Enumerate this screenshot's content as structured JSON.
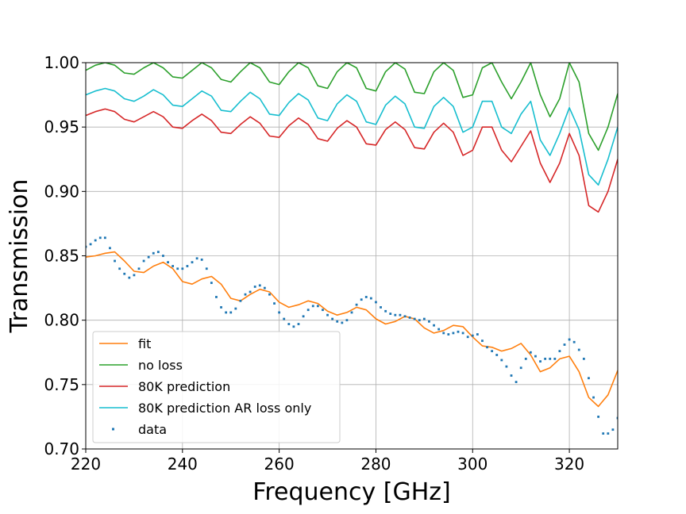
{
  "chart_data": {
    "type": "line",
    "xlabel": "Frequency [GHz]",
    "ylabel": "Transmission",
    "xlim": [
      220,
      330
    ],
    "ylim": [
      0.7,
      1.0
    ],
    "xticks": [
      "220",
      "240",
      "260",
      "280",
      "300",
      "320"
    ],
    "yticks": [
      "0.70",
      "0.75",
      "0.80",
      "0.85",
      "0.90",
      "0.95",
      "1.00"
    ],
    "grid": true,
    "legend_position": "lower-left",
    "series": [
      {
        "name": "fit",
        "color": "#ff7f0e",
        "kind": "line",
        "x": [
          220,
          222,
          224,
          226,
          228,
          230,
          232,
          234,
          236,
          238,
          240,
          242,
          244,
          246,
          248,
          250,
          252,
          254,
          256,
          258,
          260,
          262,
          264,
          266,
          268,
          270,
          272,
          274,
          276,
          278,
          280,
          282,
          284,
          286,
          288,
          290,
          292,
          294,
          296,
          298,
          300,
          302,
          304,
          306,
          308,
          310,
          312,
          314,
          316,
          318,
          320,
          322,
          324,
          326,
          328,
          330
        ],
        "y": [
          0.849,
          0.85,
          0.852,
          0.853,
          0.846,
          0.838,
          0.837,
          0.842,
          0.845,
          0.84,
          0.83,
          0.828,
          0.832,
          0.834,
          0.828,
          0.817,
          0.815,
          0.82,
          0.824,
          0.822,
          0.814,
          0.81,
          0.812,
          0.815,
          0.813,
          0.807,
          0.804,
          0.806,
          0.81,
          0.808,
          0.801,
          0.797,
          0.799,
          0.803,
          0.801,
          0.794,
          0.79,
          0.792,
          0.796,
          0.795,
          0.787,
          0.78,
          0.779,
          0.776,
          0.778,
          0.782,
          0.773,
          0.76,
          0.763,
          0.77,
          0.772,
          0.76,
          0.74,
          0.733,
          0.742,
          0.761
        ]
      },
      {
        "name": "no loss",
        "color": "#2ca02c",
        "kind": "line",
        "x": [
          220,
          222,
          224,
          226,
          228,
          230,
          232,
          234,
          236,
          238,
          240,
          242,
          244,
          246,
          248,
          250,
          252,
          254,
          256,
          258,
          260,
          262,
          264,
          266,
          268,
          270,
          272,
          274,
          276,
          278,
          280,
          282,
          284,
          286,
          288,
          290,
          292,
          294,
          296,
          298,
          300,
          302,
          304,
          306,
          308,
          310,
          312,
          314,
          316,
          318,
          320,
          322,
          324,
          326,
          328,
          330
        ],
        "y": [
          0.994,
          0.998,
          1.0,
          0.998,
          0.992,
          0.991,
          0.996,
          1.0,
          0.996,
          0.989,
          0.988,
          0.994,
          1.0,
          0.996,
          0.987,
          0.985,
          0.993,
          1.0,
          0.996,
          0.985,
          0.983,
          0.993,
          1.0,
          0.996,
          0.982,
          0.98,
          0.993,
          1.0,
          0.996,
          0.98,
          0.978,
          0.993,
          1.0,
          0.995,
          0.977,
          0.976,
          0.993,
          1.0,
          0.994,
          0.973,
          0.975,
          0.996,
          1.0,
          0.985,
          0.972,
          0.985,
          1.0,
          0.975,
          0.958,
          0.972,
          1.0,
          0.985,
          0.945,
          0.932,
          0.95,
          0.976
        ]
      },
      {
        "name": "80K prediction",
        "color": "#d62728",
        "kind": "line",
        "x": [
          220,
          222,
          224,
          226,
          228,
          230,
          232,
          234,
          236,
          238,
          240,
          242,
          244,
          246,
          248,
          250,
          252,
          254,
          256,
          258,
          260,
          262,
          264,
          266,
          268,
          270,
          272,
          274,
          276,
          278,
          280,
          282,
          284,
          286,
          288,
          290,
          292,
          294,
          296,
          298,
          300,
          302,
          304,
          306,
          308,
          310,
          312,
          314,
          316,
          318,
          320,
          322,
          324,
          326,
          328,
          330
        ],
        "y": [
          0.959,
          0.962,
          0.964,
          0.962,
          0.956,
          0.954,
          0.958,
          0.962,
          0.958,
          0.95,
          0.949,
          0.955,
          0.96,
          0.955,
          0.946,
          0.945,
          0.952,
          0.958,
          0.953,
          0.943,
          0.942,
          0.951,
          0.957,
          0.952,
          0.941,
          0.939,
          0.949,
          0.955,
          0.95,
          0.937,
          0.936,
          0.948,
          0.954,
          0.948,
          0.934,
          0.933,
          0.946,
          0.953,
          0.946,
          0.928,
          0.932,
          0.95,
          0.95,
          0.932,
          0.923,
          0.935,
          0.947,
          0.922,
          0.907,
          0.922,
          0.945,
          0.928,
          0.889,
          0.884,
          0.9,
          0.925
        ]
      },
      {
        "name": "80K prediction AR loss only",
        "color": "#17becf",
        "kind": "line",
        "x": [
          220,
          222,
          224,
          226,
          228,
          230,
          232,
          234,
          236,
          238,
          240,
          242,
          244,
          246,
          248,
          250,
          252,
          254,
          256,
          258,
          260,
          262,
          264,
          266,
          268,
          270,
          272,
          274,
          276,
          278,
          280,
          282,
          284,
          286,
          288,
          290,
          292,
          294,
          296,
          298,
          300,
          302,
          304,
          306,
          308,
          310,
          312,
          314,
          316,
          318,
          320,
          322,
          324,
          326,
          328,
          330
        ],
        "y": [
          0.975,
          0.978,
          0.98,
          0.978,
          0.972,
          0.97,
          0.974,
          0.979,
          0.975,
          0.967,
          0.966,
          0.972,
          0.978,
          0.974,
          0.963,
          0.962,
          0.97,
          0.977,
          0.972,
          0.96,
          0.959,
          0.969,
          0.976,
          0.971,
          0.957,
          0.955,
          0.968,
          0.975,
          0.97,
          0.954,
          0.952,
          0.967,
          0.974,
          0.968,
          0.95,
          0.949,
          0.966,
          0.973,
          0.966,
          0.946,
          0.95,
          0.97,
          0.97,
          0.95,
          0.945,
          0.96,
          0.97,
          0.94,
          0.928,
          0.945,
          0.965,
          0.948,
          0.913,
          0.905,
          0.925,
          0.95
        ]
      },
      {
        "name": "data",
        "color": "#1f77b4",
        "kind": "scatter",
        "x": [
          220,
          221,
          222,
          223,
          224,
          225,
          226,
          227,
          228,
          229,
          230,
          231,
          232,
          233,
          234,
          235,
          236,
          237,
          238,
          239,
          240,
          241,
          242,
          243,
          244,
          245,
          246,
          247,
          248,
          249,
          250,
          251,
          252,
          253,
          254,
          255,
          256,
          257,
          258,
          259,
          260,
          261,
          262,
          263,
          264,
          265,
          266,
          267,
          268,
          269,
          270,
          271,
          272,
          273,
          274,
          275,
          276,
          277,
          278,
          279,
          280,
          281,
          282,
          283,
          284,
          285,
          286,
          287,
          288,
          289,
          290,
          291,
          292,
          293,
          294,
          295,
          296,
          297,
          298,
          299,
          300,
          301,
          302,
          303,
          304,
          305,
          306,
          307,
          308,
          309,
          310,
          311,
          312,
          313,
          314,
          315,
          316,
          317,
          318,
          319,
          320,
          321,
          322,
          323,
          324,
          325,
          326,
          327,
          328,
          329,
          330
        ],
        "y": [
          0.857,
          0.859,
          0.862,
          0.864,
          0.864,
          0.856,
          0.846,
          0.84,
          0.836,
          0.833,
          0.835,
          0.84,
          0.846,
          0.849,
          0.852,
          0.853,
          0.85,
          0.845,
          0.842,
          0.84,
          0.84,
          0.842,
          0.845,
          0.848,
          0.847,
          0.84,
          0.829,
          0.818,
          0.81,
          0.806,
          0.806,
          0.809,
          0.815,
          0.82,
          0.822,
          0.826,
          0.827,
          0.825,
          0.82,
          0.813,
          0.806,
          0.801,
          0.797,
          0.795,
          0.797,
          0.803,
          0.808,
          0.811,
          0.811,
          0.808,
          0.804,
          0.801,
          0.799,
          0.798,
          0.8,
          0.806,
          0.812,
          0.816,
          0.818,
          0.817,
          0.814,
          0.81,
          0.807,
          0.805,
          0.804,
          0.804,
          0.803,
          0.802,
          0.801,
          0.8,
          0.801,
          0.799,
          0.796,
          0.793,
          0.79,
          0.789,
          0.79,
          0.791,
          0.79,
          0.787,
          0.788,
          0.789,
          0.784,
          0.779,
          0.776,
          0.773,
          0.769,
          0.764,
          0.757,
          0.752,
          0.763,
          0.77,
          0.775,
          0.772,
          0.768,
          0.77,
          0.77,
          0.77,
          0.776,
          0.781,
          0.785,
          0.783,
          0.777,
          0.77,
          0.755,
          0.74,
          0.725,
          0.712,
          0.712,
          0.715,
          0.724
        ]
      }
    ]
  }
}
